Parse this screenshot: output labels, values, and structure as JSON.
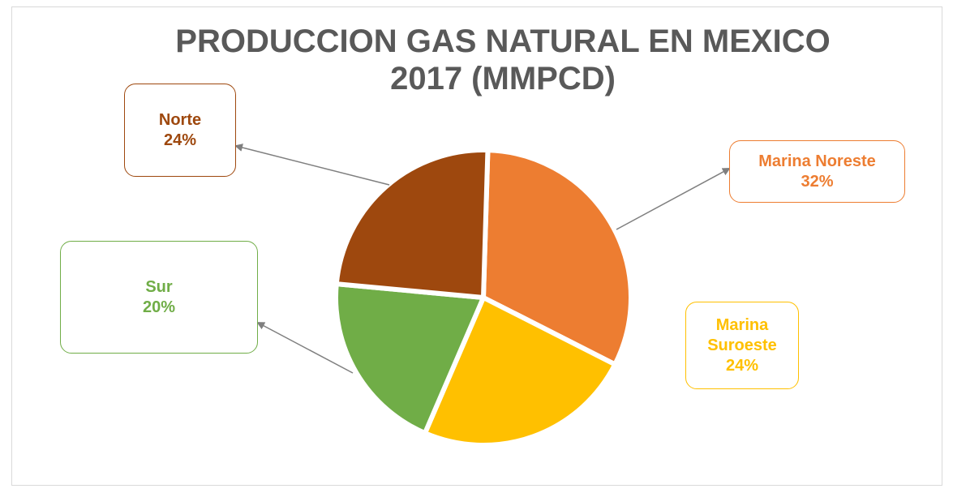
{
  "chart_data": {
    "type": "pie",
    "title": "PRODUCCION GAS NATURAL EN MEXICO 2017 (MMPCD)",
    "categories": [
      "Marina Noreste",
      "Marina Suroeste",
      "Sur",
      "Norte"
    ],
    "values": [
      32,
      24,
      20,
      24
    ],
    "value_labels": [
      "32%",
      "24%",
      "20%",
      "24%"
    ],
    "colors": [
      "#ED7D31",
      "#FFC000",
      "#70AD47",
      "#9E480E"
    ]
  }
}
